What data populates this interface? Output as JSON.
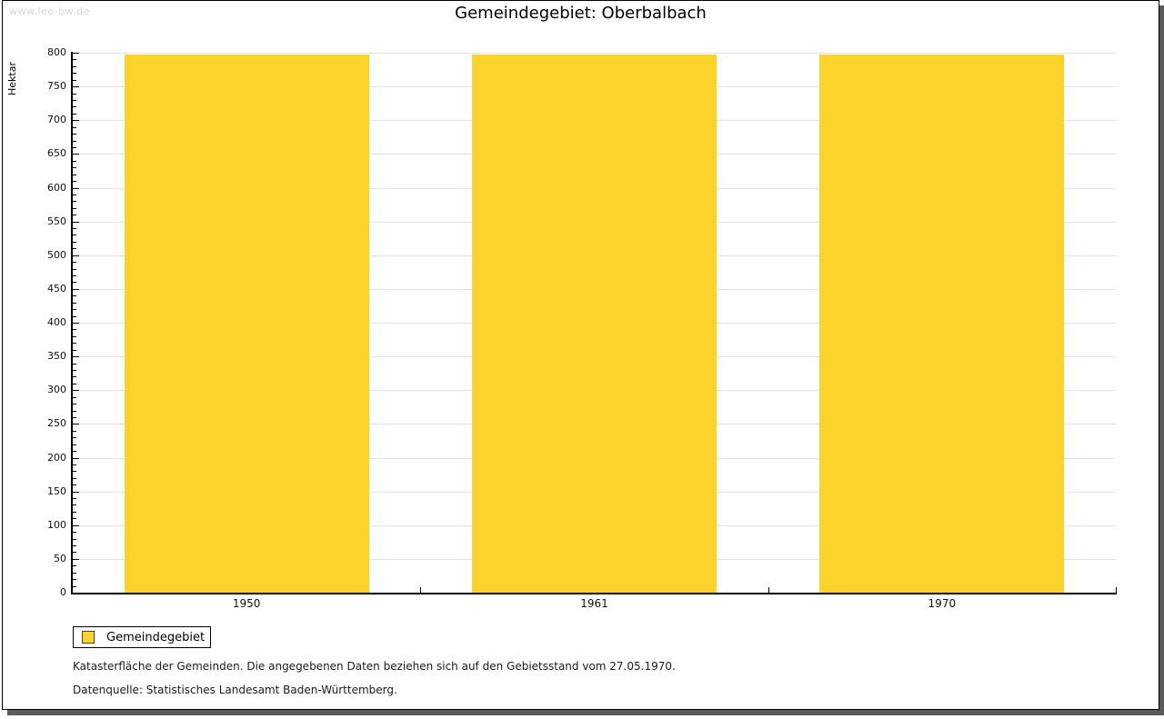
{
  "page": {
    "watermark": "www.leo-bw.de",
    "title": "Gemeindegebiet: Oberbalbach",
    "footnote": "Katasterfläche der Gemeinden. Die angegebenen Daten beziehen sich auf den Gebietsstand vom 27.05.1970.",
    "source": "Datenquelle: Statistisches Landesamt Baden-Württemberg."
  },
  "legend": {
    "label": "Gemeindegebiet"
  },
  "colors": {
    "bar": "#fcd32b",
    "grid": "#e2e2e2",
    "axis": "#000000",
    "watermark_text": "#d4d4d4",
    "panel_shadow": "#5a5a5a"
  },
  "chart_data": {
    "type": "bar",
    "title": "Gemeindegebiet: Oberbalbach",
    "categories": [
      "1950",
      "1961",
      "1970"
    ],
    "series": [
      {
        "name": "Gemeindegebiet",
        "values": [
          797,
          797,
          797
        ]
      }
    ],
    "xlabel": "",
    "ylabel": "Hektar",
    "ylim": [
      0,
      800
    ],
    "y_major_step": 50,
    "y_minor_step": 10,
    "grid": true,
    "legend_position": "bottom-left",
    "bar_color": "#fcd32b"
  }
}
